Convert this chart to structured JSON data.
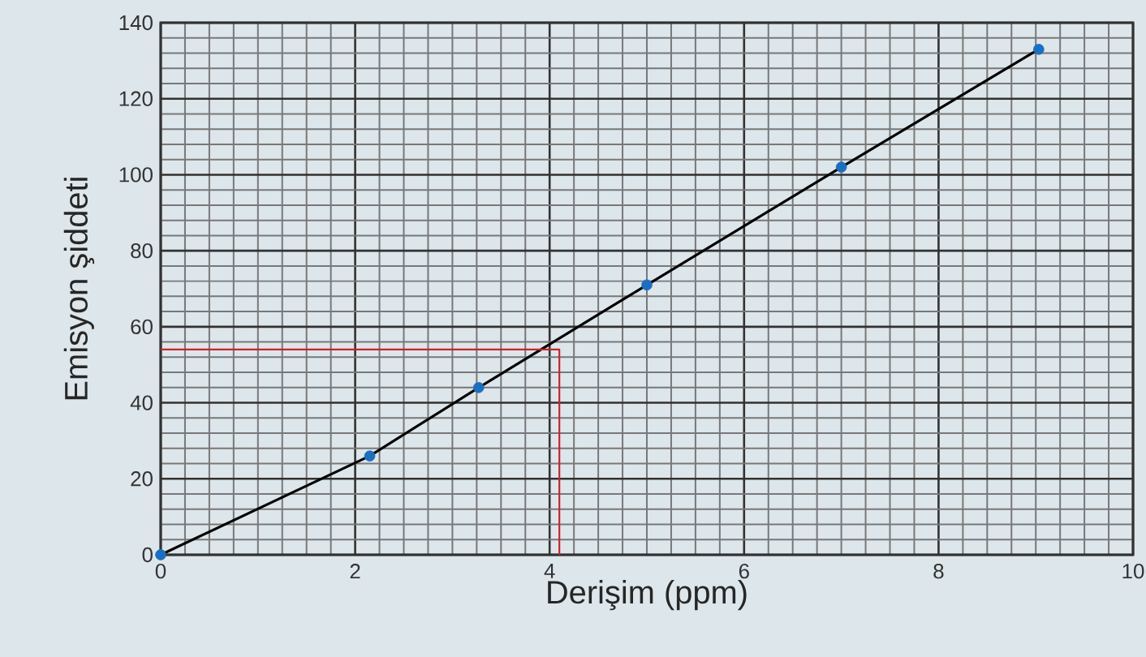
{
  "chart_data": {
    "type": "line",
    "xlabel": "Derişim (ppm)",
    "ylabel": "Emisyon şiddeti",
    "xlim": [
      0,
      10
    ],
    "ylim": [
      0,
      140
    ],
    "xticks": [
      0,
      2,
      4,
      6,
      8,
      10
    ],
    "yticks": [
      0,
      20,
      40,
      60,
      80,
      100,
      120,
      140
    ],
    "grid": true,
    "series": [
      {
        "color": "#000000",
        "x": [
          0,
          2.15,
          3.27,
          5.0,
          7.0,
          9.03
        ],
        "values": [
          0,
          26,
          44,
          71,
          102,
          133
        ]
      },
      {
        "color": "#d0202a",
        "x": [
          0,
          4.1,
          4.1
        ],
        "values": [
          54,
          54,
          0
        ]
      },
      {
        "type": "scatter",
        "color": "#1a6fc0",
        "marker": "circle",
        "x": [
          0,
          2.15,
          3.27,
          5.0,
          7.0,
          9.03
        ],
        "values": [
          0,
          26,
          44,
          71,
          102,
          133
        ]
      }
    ]
  }
}
